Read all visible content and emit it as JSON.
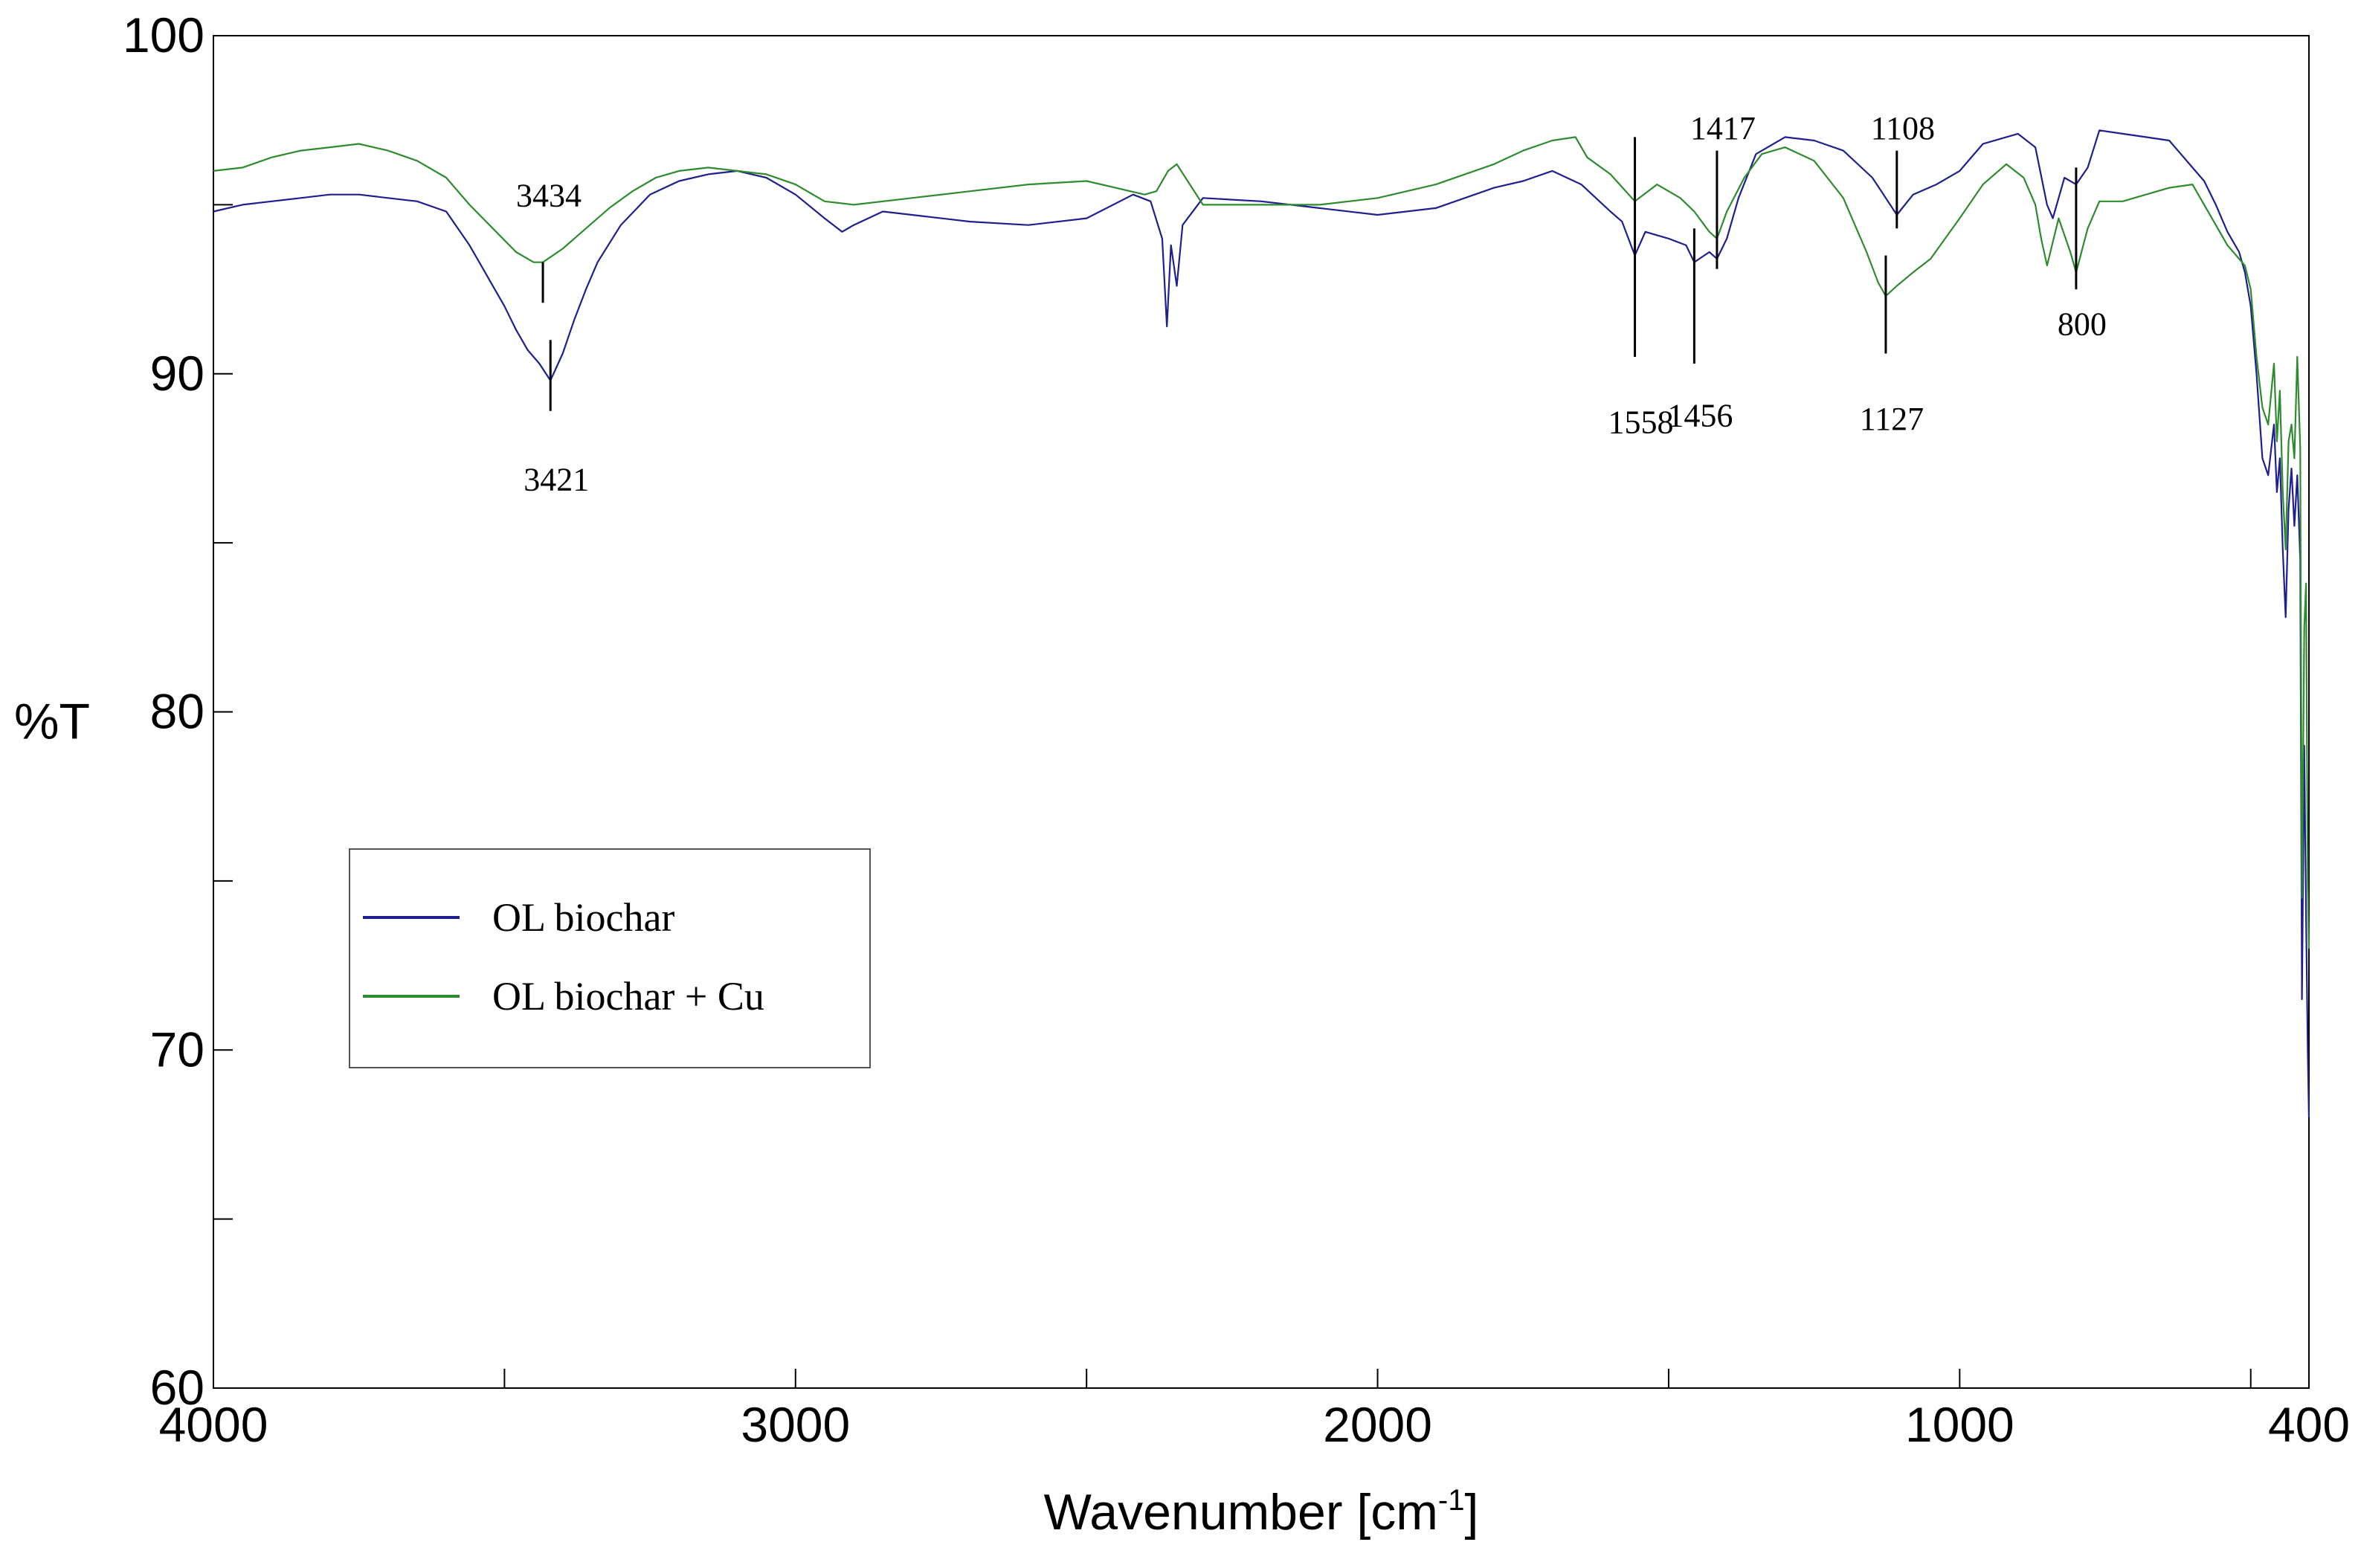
{
  "chart_data": {
    "type": "line",
    "xlabel": "Wavenumber [cm",
    "xlabel_superscript": "-1",
    "xlabel_suffix": "]",
    "ylabel": "%T",
    "xlim": [
      4000,
      400
    ],
    "ylim": [
      60,
      100
    ],
    "x_ticks_labeled": [
      4000,
      3000,
      2000,
      1000,
      400
    ],
    "x_ticks_minor": [
      3500,
      2500,
      1500,
      500
    ],
    "y_ticks_labeled": [
      60,
      70,
      80,
      90,
      100
    ],
    "y_ticks_minor": [
      65,
      75,
      85,
      95
    ],
    "grid": false,
    "legend_position": "left",
    "series": [
      {
        "name": "OL biochar",
        "color": "#1f1f8f",
        "points": [
          [
            4000,
            94.8
          ],
          [
            3950,
            95.0
          ],
          [
            3900,
            95.1
          ],
          [
            3850,
            95.2
          ],
          [
            3800,
            95.3
          ],
          [
            3750,
            95.3
          ],
          [
            3700,
            95.2
          ],
          [
            3650,
            95.1
          ],
          [
            3600,
            94.8
          ],
          [
            3580,
            94.3
          ],
          [
            3560,
            93.8
          ],
          [
            3540,
            93.2
          ],
          [
            3520,
            92.6
          ],
          [
            3500,
            92.0
          ],
          [
            3480,
            91.3
          ],
          [
            3460,
            90.7
          ],
          [
            3440,
            90.3
          ],
          [
            3421,
            89.8
          ],
          [
            3400,
            90.6
          ],
          [
            3380,
            91.6
          ],
          [
            3360,
            92.5
          ],
          [
            3340,
            93.3
          ],
          [
            3300,
            94.4
          ],
          [
            3250,
            95.3
          ],
          [
            3200,
            95.7
          ],
          [
            3150,
            95.9
          ],
          [
            3100,
            96.0
          ],
          [
            3050,
            95.8
          ],
          [
            3000,
            95.3
          ],
          [
            2950,
            94.6
          ],
          [
            2920,
            94.2
          ],
          [
            2900,
            94.4
          ],
          [
            2850,
            94.8
          ],
          [
            2800,
            94.7
          ],
          [
            2700,
            94.5
          ],
          [
            2600,
            94.4
          ],
          [
            2500,
            94.6
          ],
          [
            2420,
            95.3
          ],
          [
            2390,
            95.1
          ],
          [
            2370,
            94.0
          ],
          [
            2362,
            91.4
          ],
          [
            2355,
            93.8
          ],
          [
            2345,
            92.6
          ],
          [
            2335,
            94.4
          ],
          [
            2300,
            95.2
          ],
          [
            2200,
            95.1
          ],
          [
            2100,
            94.9
          ],
          [
            2000,
            94.7
          ],
          [
            1900,
            94.9
          ],
          [
            1800,
            95.5
          ],
          [
            1750,
            95.7
          ],
          [
            1700,
            96.0
          ],
          [
            1650,
            95.6
          ],
          [
            1600,
            94.8
          ],
          [
            1580,
            94.5
          ],
          [
            1558,
            93.5
          ],
          [
            1540,
            94.2
          ],
          [
            1500,
            94.0
          ],
          [
            1470,
            93.8
          ],
          [
            1456,
            93.3
          ],
          [
            1430,
            93.6
          ],
          [
            1417,
            93.4
          ],
          [
            1400,
            94.0
          ],
          [
            1380,
            95.2
          ],
          [
            1350,
            96.5
          ],
          [
            1300,
            97.0
          ],
          [
            1250,
            96.9
          ],
          [
            1200,
            96.6
          ],
          [
            1150,
            95.8
          ],
          [
            1127,
            95.2
          ],
          [
            1108,
            94.7
          ],
          [
            1080,
            95.3
          ],
          [
            1040,
            95.6
          ],
          [
            1000,
            96.0
          ],
          [
            960,
            96.8
          ],
          [
            900,
            97.1
          ],
          [
            870,
            96.7
          ],
          [
            850,
            95.0
          ],
          [
            840,
            94.6
          ],
          [
            820,
            95.8
          ],
          [
            800,
            95.6
          ],
          [
            780,
            96.1
          ],
          [
            760,
            97.2
          ],
          [
            720,
            97.1
          ],
          [
            680,
            97.0
          ],
          [
            640,
            96.9
          ],
          [
            620,
            96.5
          ],
          [
            600,
            96.1
          ],
          [
            580,
            95.7
          ],
          [
            560,
            95.0
          ],
          [
            540,
            94.2
          ],
          [
            520,
            93.6
          ],
          [
            510,
            93.0
          ],
          [
            500,
            92.0
          ],
          [
            490,
            90.0
          ],
          [
            480,
            87.5
          ],
          [
            470,
            87.0
          ],
          [
            460,
            88.5
          ],
          [
            455,
            86.5
          ],
          [
            450,
            87.5
          ],
          [
            445,
            84.8
          ],
          [
            440,
            82.8
          ],
          [
            435,
            86.0
          ],
          [
            430,
            87.2
          ],
          [
            425,
            85.5
          ],
          [
            420,
            87.0
          ],
          [
            415,
            84.5
          ],
          [
            412,
            71.5
          ],
          [
            408,
            79.0
          ],
          [
            405,
            74.0
          ],
          [
            402,
            70.0
          ],
          [
            400,
            68.0
          ]
        ]
      },
      {
        "name": "OL biochar + Cu",
        "color": "#2e8b2e",
        "points": [
          [
            4000,
            96.0
          ],
          [
            3950,
            96.1
          ],
          [
            3900,
            96.4
          ],
          [
            3850,
            96.6
          ],
          [
            3800,
            96.7
          ],
          [
            3750,
            96.8
          ],
          [
            3700,
            96.6
          ],
          [
            3650,
            96.3
          ],
          [
            3600,
            95.8
          ],
          [
            3560,
            95.0
          ],
          [
            3520,
            94.3
          ],
          [
            3480,
            93.6
          ],
          [
            3450,
            93.3
          ],
          [
            3434,
            93.3
          ],
          [
            3400,
            93.7
          ],
          [
            3360,
            94.3
          ],
          [
            3320,
            94.9
          ],
          [
            3280,
            95.4
          ],
          [
            3240,
            95.8
          ],
          [
            3200,
            96.0
          ],
          [
            3150,
            96.1
          ],
          [
            3100,
            96.0
          ],
          [
            3050,
            95.9
          ],
          [
            3000,
            95.6
          ],
          [
            2950,
            95.1
          ],
          [
            2900,
            95.0
          ],
          [
            2800,
            95.2
          ],
          [
            2700,
            95.4
          ],
          [
            2600,
            95.6
          ],
          [
            2500,
            95.7
          ],
          [
            2450,
            95.5
          ],
          [
            2400,
            95.3
          ],
          [
            2380,
            95.4
          ],
          [
            2360,
            96.0
          ],
          [
            2345,
            96.2
          ],
          [
            2330,
            95.8
          ],
          [
            2300,
            95.0
          ],
          [
            2200,
            95.0
          ],
          [
            2100,
            95.0
          ],
          [
            2000,
            95.2
          ],
          [
            1900,
            95.6
          ],
          [
            1800,
            96.2
          ],
          [
            1750,
            96.6
          ],
          [
            1700,
            96.9
          ],
          [
            1660,
            97.0
          ],
          [
            1640,
            96.4
          ],
          [
            1600,
            95.9
          ],
          [
            1558,
            95.1
          ],
          [
            1520,
            95.6
          ],
          [
            1480,
            95.2
          ],
          [
            1456,
            94.8
          ],
          [
            1430,
            94.2
          ],
          [
            1417,
            94.0
          ],
          [
            1400,
            94.8
          ],
          [
            1370,
            95.8
          ],
          [
            1340,
            96.5
          ],
          [
            1300,
            96.7
          ],
          [
            1250,
            96.3
          ],
          [
            1200,
            95.2
          ],
          [
            1160,
            93.6
          ],
          [
            1140,
            92.7
          ],
          [
            1127,
            92.3
          ],
          [
            1108,
            92.6
          ],
          [
            1080,
            93.0
          ],
          [
            1050,
            93.4
          ],
          [
            1000,
            94.6
          ],
          [
            960,
            95.6
          ],
          [
            920,
            96.2
          ],
          [
            890,
            95.8
          ],
          [
            870,
            95.0
          ],
          [
            860,
            94.0
          ],
          [
            850,
            93.2
          ],
          [
            830,
            94.6
          ],
          [
            810,
            93.6
          ],
          [
            800,
            93.0
          ],
          [
            780,
            94.3
          ],
          [
            760,
            95.1
          ],
          [
            720,
            95.1
          ],
          [
            680,
            95.3
          ],
          [
            640,
            95.5
          ],
          [
            600,
            95.6
          ],
          [
            580,
            95.0
          ],
          [
            560,
            94.4
          ],
          [
            540,
            93.8
          ],
          [
            520,
            93.4
          ],
          [
            510,
            93.2
          ],
          [
            500,
            92.5
          ],
          [
            490,
            90.5
          ],
          [
            480,
            89.0
          ],
          [
            470,
            88.5
          ],
          [
            460,
            90.3
          ],
          [
            455,
            88.0
          ],
          [
            450,
            89.5
          ],
          [
            445,
            86.5
          ],
          [
            440,
            84.8
          ],
          [
            435,
            88.0
          ],
          [
            430,
            88.5
          ],
          [
            425,
            87.5
          ],
          [
            420,
            90.5
          ],
          [
            415,
            87.8
          ],
          [
            412,
            74.5
          ],
          [
            408,
            82.5
          ],
          [
            405,
            83.8
          ],
          [
            402,
            75.0
          ],
          [
            400,
            73.0
          ]
        ]
      }
    ],
    "annotations": [
      {
        "label": "3434",
        "x": 3434,
        "line": [
          92.1,
          93.3
        ],
        "text_y": 95.3
      },
      {
        "label": "3421",
        "x": 3421,
        "line": [
          88.9,
          91.0
        ],
        "text_y": 86.9
      },
      {
        "label": "1558",
        "x": 1558,
        "line": [
          90.5,
          97.0
        ],
        "text_y": 88.6
      },
      {
        "label": "1456",
        "x": 1456,
        "line": [
          90.3,
          94.3
        ],
        "text_y": 88.8
      },
      {
        "label": "1417",
        "x": 1417,
        "line": [
          93.1,
          96.6
        ],
        "text_y": 97.3
      },
      {
        "label": "1108",
        "x": 1108,
        "line": [
          94.3,
          96.6
        ],
        "text_y": 97.3
      },
      {
        "label": "1127",
        "x": 1127,
        "line": [
          90.6,
          93.5
        ],
        "text_y": 88.7
      },
      {
        "label": "800",
        "x": 800,
        "line": [
          92.5,
          96.1
        ],
        "text_y": 91.5
      }
    ]
  }
}
